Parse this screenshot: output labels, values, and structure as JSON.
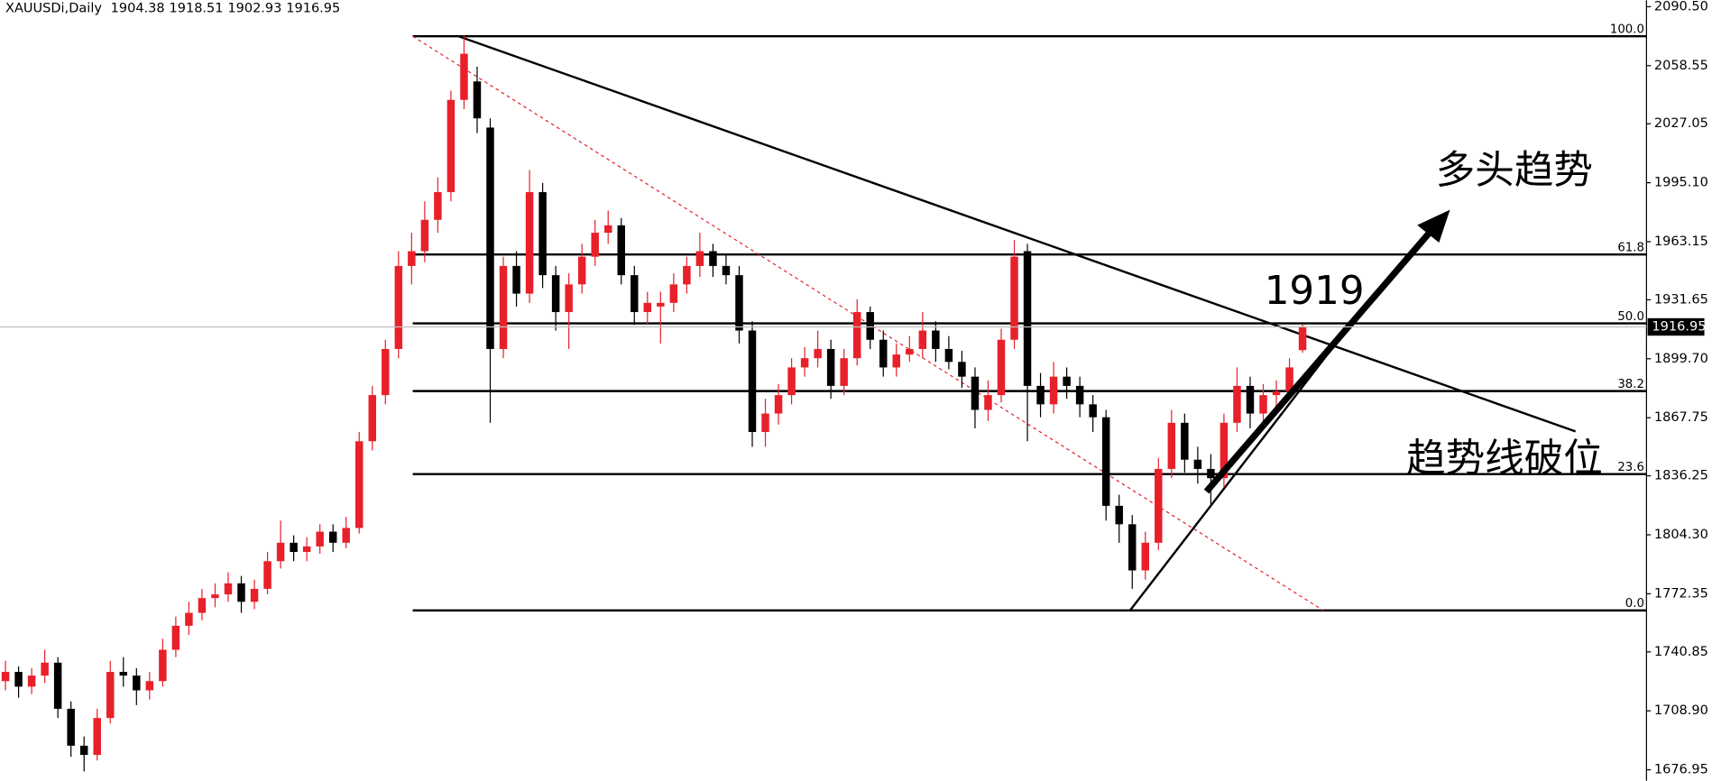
{
  "chart_data": {
    "type": "candlestick",
    "title": "XAUUSDi,Daily",
    "annotations": [
      "多头趋势",
      "1919",
      "趋势线破位"
    ],
    "up_color": "#e8202a",
    "down_color": "#000000",
    "ylim": [
      1671,
      2094
    ],
    "yticks": [
      {
        "value": 2090.5,
        "label": "2090.50"
      },
      {
        "value": 2058.55,
        "label": "2058.55"
      },
      {
        "value": 2027.05,
        "label": "2027.05"
      },
      {
        "value": 1995.1,
        "label": "1995.10"
      },
      {
        "value": 1963.15,
        "label": "1963.15"
      },
      {
        "value": 1931.65,
        "label": "1931.65"
      },
      {
        "value": 1899.7,
        "label": "1899.70"
      },
      {
        "value": 1867.75,
        "label": "1867.75"
      },
      {
        "value": 1836.25,
        "label": "1836.25"
      },
      {
        "value": 1804.3,
        "label": "1804.30"
      },
      {
        "value": 1772.35,
        "label": "1772.35"
      },
      {
        "value": 1740.85,
        "label": "1740.85"
      },
      {
        "value": 1708.9,
        "label": "1708.90"
      },
      {
        "value": 1676.95,
        "label": "1676.95"
      }
    ],
    "fib_levels": [
      {
        "label": "100.0",
        "price": 2074.5
      },
      {
        "label": "61.8",
        "price": 1956.2
      },
      {
        "label": "50.0",
        "price": 1918.9
      },
      {
        "label": "38.2",
        "price": 1882.2
      },
      {
        "label": "23.6",
        "price": 1837.2
      },
      {
        "label": "0.0",
        "price": 1763.3
      }
    ],
    "ohlc": [
      [
        1725,
        1736,
        1720,
        1730
      ],
      [
        1730,
        1733,
        1716,
        1722
      ],
      [
        1722,
        1732,
        1718,
        1728
      ],
      [
        1728,
        1742,
        1724,
        1735
      ],
      [
        1735,
        1738,
        1705,
        1710
      ],
      [
        1710,
        1714,
        1684,
        1690
      ],
      [
        1690,
        1695,
        1676,
        1685
      ],
      [
        1685,
        1710,
        1682,
        1705
      ],
      [
        1705,
        1736,
        1702,
        1730
      ],
      [
        1730,
        1738,
        1722,
        1728
      ],
      [
        1728,
        1732,
        1712,
        1720
      ],
      [
        1720,
        1730,
        1715,
        1725
      ],
      [
        1725,
        1748,
        1722,
        1742
      ],
      [
        1742,
        1760,
        1738,
        1755
      ],
      [
        1755,
        1768,
        1750,
        1762
      ],
      [
        1762,
        1775,
        1758,
        1770
      ],
      [
        1770,
        1778,
        1765,
        1772
      ],
      [
        1772,
        1784,
        1768,
        1778
      ],
      [
        1778,
        1782,
        1762,
        1768
      ],
      [
        1768,
        1780,
        1764,
        1775
      ],
      [
        1775,
        1795,
        1772,
        1790
      ],
      [
        1790,
        1812,
        1786,
        1800
      ],
      [
        1800,
        1804,
        1790,
        1795
      ],
      [
        1795,
        1803,
        1790,
        1798
      ],
      [
        1798,
        1810,
        1794,
        1806
      ],
      [
        1806,
        1810,
        1795,
        1800
      ],
      [
        1800,
        1814,
        1797,
        1808
      ],
      [
        1808,
        1860,
        1805,
        1855
      ],
      [
        1855,
        1885,
        1850,
        1880
      ],
      [
        1880,
        1910,
        1875,
        1905
      ],
      [
        1905,
        1958,
        1900,
        1950
      ],
      [
        1950,
        1968,
        1940,
        1958
      ],
      [
        1958,
        1985,
        1952,
        1975
      ],
      [
        1975,
        1998,
        1968,
        1990
      ],
      [
        1990,
        2045,
        1985,
        2040
      ],
      [
        2040,
        2075,
        2035,
        2065
      ],
      [
        2050,
        2058,
        2022,
        2030
      ],
      [
        2025,
        2030,
        1865,
        1905
      ],
      [
        1905,
        1955,
        1900,
        1950
      ],
      [
        1950,
        1958,
        1928,
        1935
      ],
      [
        1935,
        2002,
        1930,
        1990
      ],
      [
        1990,
        1995,
        1938,
        1945
      ],
      [
        1945,
        1950,
        1915,
        1925
      ],
      [
        1925,
        1946,
        1905,
        1940
      ],
      [
        1940,
        1962,
        1935,
        1955
      ],
      [
        1955,
        1975,
        1950,
        1968
      ],
      [
        1968,
        1980,
        1962,
        1972
      ],
      [
        1972,
        1976,
        1940,
        1945
      ],
      [
        1945,
        1950,
        1918,
        1925
      ],
      [
        1925,
        1936,
        1918,
        1930
      ],
      [
        1928,
        1936,
        1908,
        1930
      ],
      [
        1930,
        1946,
        1925,
        1940
      ],
      [
        1940,
        1955,
        1935,
        1950
      ],
      [
        1950,
        1968,
        1944,
        1958
      ],
      [
        1958,
        1962,
        1944,
        1950
      ],
      [
        1950,
        1956,
        1940,
        1945
      ],
      [
        1945,
        1950,
        1908,
        1915
      ],
      [
        1915,
        1920,
        1852,
        1860
      ],
      [
        1860,
        1878,
        1852,
        1870
      ],
      [
        1870,
        1886,
        1864,
        1880
      ],
      [
        1880,
        1900,
        1875,
        1895
      ],
      [
        1895,
        1906,
        1890,
        1900
      ],
      [
        1900,
        1915,
        1895,
        1905
      ],
      [
        1905,
        1910,
        1878,
        1885
      ],
      [
        1885,
        1905,
        1880,
        1900
      ],
      [
        1900,
        1932,
        1896,
        1925
      ],
      [
        1925,
        1928,
        1905,
        1910
      ],
      [
        1910,
        1915,
        1890,
        1895
      ],
      [
        1895,
        1908,
        1890,
        1902
      ],
      [
        1902,
        1912,
        1898,
        1905
      ],
      [
        1905,
        1925,
        1900,
        1915
      ],
      [
        1915,
        1920,
        1898,
        1905
      ],
      [
        1905,
        1912,
        1894,
        1898
      ],
      [
        1898,
        1904,
        1884,
        1890
      ],
      [
        1890,
        1895,
        1862,
        1872
      ],
      [
        1872,
        1888,
        1866,
        1880
      ],
      [
        1880,
        1916,
        1876,
        1910
      ],
      [
        1910,
        1964,
        1905,
        1955
      ],
      [
        1958,
        1962,
        1855,
        1885
      ],
      [
        1885,
        1892,
        1868,
        1875
      ],
      [
        1875,
        1898,
        1870,
        1890
      ],
      [
        1890,
        1895,
        1878,
        1885
      ],
      [
        1885,
        1890,
        1868,
        1875
      ],
      [
        1875,
        1880,
        1860,
        1868
      ],
      [
        1868,
        1872,
        1812,
        1820
      ],
      [
        1820,
        1826,
        1800,
        1810
      ],
      [
        1810,
        1815,
        1775,
        1785
      ],
      [
        1785,
        1806,
        1780,
        1800
      ],
      [
        1800,
        1846,
        1796,
        1840
      ],
      [
        1840,
        1872,
        1835,
        1865
      ],
      [
        1865,
        1870,
        1838,
        1845
      ],
      [
        1845,
        1852,
        1832,
        1840
      ],
      [
        1840,
        1848,
        1820,
        1835
      ],
      [
        1835,
        1870,
        1830,
        1865
      ],
      [
        1865,
        1895,
        1860,
        1885
      ],
      [
        1885,
        1890,
        1862,
        1870
      ],
      [
        1870,
        1886,
        1865,
        1880
      ],
      [
        1880,
        1888,
        1872,
        1882
      ],
      [
        1882,
        1900,
        1878,
        1895
      ],
      [
        1904.38,
        1918.51,
        1902.93,
        1916.95
      ]
    ]
  }
}
